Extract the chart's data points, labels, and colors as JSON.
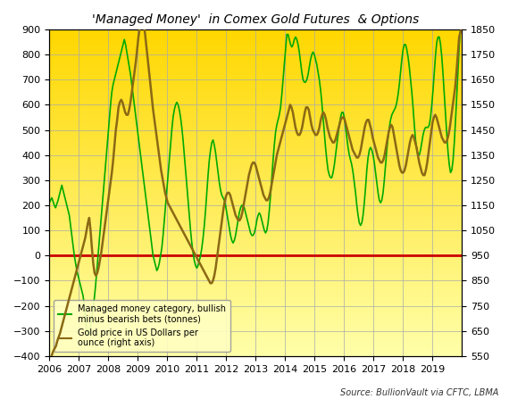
{
  "title": "'Managed Money'  in Comex Gold Futures  & Options",
  "source_text": "Source: BullionVault via CFTC, LBMA",
  "left_ylim": [
    -400,
    900
  ],
  "right_ylim": [
    550,
    1850
  ],
  "left_yticks": [
    -400,
    -300,
    -200,
    -100,
    0,
    100,
    200,
    300,
    400,
    500,
    600,
    700,
    800,
    900
  ],
  "right_yticks": [
    550,
    650,
    750,
    850,
    950,
    1050,
    1150,
    1250,
    1350,
    1450,
    1550,
    1650,
    1750,
    1850
  ],
  "xtick_labels": [
    "2006",
    "2007",
    "2008",
    "2009",
    "2010",
    "2011",
    "2012",
    "2013",
    "2014",
    "2015",
    "2016",
    "2017",
    "2018",
    "2019"
  ],
  "background_top_color": "#FFD700",
  "background_bottom_color": "#FFFFAA",
  "zero_line_color": "#CC0000",
  "net_color": "#00AA00",
  "gold_color": "#8B6914",
  "legend_net_label": "Managed money category, bullish\nminus bearish bets (tonnes)",
  "legend_gold_label": "Gold price in US Dollars per\nounce (right axis)",
  "net_data": [
    210,
    220,
    230,
    215,
    200,
    190,
    205,
    220,
    240,
    260,
    280,
    260,
    240,
    220,
    200,
    180,
    160,
    120,
    80,
    40,
    0,
    -30,
    -60,
    -80,
    -100,
    -120,
    -140,
    -160,
    -200,
    -250,
    -300,
    -320,
    -310,
    -280,
    -250,
    -210,
    -170,
    -120,
    -60,
    0,
    60,
    120,
    180,
    240,
    300,
    360,
    420,
    480,
    540,
    600,
    650,
    680,
    700,
    720,
    740,
    760,
    780,
    800,
    820,
    840,
    860,
    840,
    810,
    780,
    750,
    720,
    680,
    640,
    600,
    560,
    520,
    480,
    440,
    400,
    360,
    320,
    280,
    240,
    200,
    160,
    120,
    80,
    40,
    0,
    -20,
    -40,
    -60,
    -50,
    -30,
    0,
    30,
    80,
    140,
    200,
    260,
    320,
    380,
    440,
    500,
    550,
    580,
    600,
    610,
    600,
    580,
    550,
    510,
    460,
    400,
    340,
    280,
    220,
    160,
    100,
    50,
    10,
    -20,
    -40,
    -50,
    -40,
    -20,
    0,
    30,
    70,
    120,
    180,
    250,
    320,
    380,
    420,
    450,
    460,
    440,
    410,
    370,
    330,
    290,
    260,
    240,
    230,
    220,
    200,
    170,
    140,
    110,
    80,
    60,
    50,
    60,
    80,
    110,
    140,
    170,
    190,
    200,
    200,
    190,
    170,
    150,
    130,
    110,
    90,
    80,
    80,
    90,
    110,
    140,
    160,
    170,
    160,
    140,
    120,
    100,
    90,
    100,
    130,
    180,
    240,
    310,
    380,
    440,
    490,
    520,
    540,
    560,
    590,
    640,
    700,
    760,
    820,
    880,
    880,
    860,
    840,
    830,
    840,
    860,
    870,
    860,
    840,
    810,
    770,
    730,
    700,
    690,
    690,
    700,
    720,
    750,
    780,
    800,
    810,
    800,
    780,
    760,
    730,
    700,
    660,
    610,
    550,
    490,
    430,
    380,
    340,
    320,
    310,
    310,
    330,
    360,
    400,
    440,
    480,
    520,
    550,
    570,
    570,
    550,
    510,
    470,
    430,
    400,
    380,
    360,
    330,
    290,
    250,
    200,
    160,
    130,
    120,
    130,
    160,
    210,
    270,
    340,
    390,
    420,
    430,
    420,
    400,
    370,
    330,
    290,
    250,
    220,
    210,
    220,
    250,
    300,
    360,
    420,
    470,
    510,
    540,
    560,
    570,
    580,
    590,
    610,
    640,
    680,
    730,
    780,
    820,
    840,
    840,
    820,
    790,
    750,
    700,
    650,
    590,
    520,
    460,
    420,
    400,
    400,
    420,
    450,
    480,
    500,
    510,
    510,
    510,
    520,
    550,
    600,
    660,
    730,
    800,
    850,
    870,
    870,
    840,
    790,
    720,
    640,
    560,
    480,
    410,
    360,
    330,
    340,
    380,
    450,
    540,
    640,
    740,
    840,
    910,
    900
  ],
  "gold_data": [
    520,
    540,
    555,
    570,
    580,
    590,
    610,
    625,
    640,
    660,
    680,
    700,
    720,
    740,
    760,
    780,
    800,
    820,
    840,
    860,
    880,
    900,
    920,
    940,
    960,
    980,
    1000,
    1020,
    1050,
    1080,
    1100,
    1050,
    980,
    920,
    880,
    870,
    880,
    900,
    930,
    960,
    1000,
    1040,
    1080,
    1120,
    1160,
    1200,
    1240,
    1280,
    1330,
    1390,
    1450,
    1490,
    1540,
    1560,
    1570,
    1560,
    1540,
    1520,
    1510,
    1510,
    1530,
    1560,
    1600,
    1640,
    1680,
    1720,
    1770,
    1820,
    1860,
    1880,
    1880,
    1870,
    1830,
    1780,
    1730,
    1680,
    1630,
    1580,
    1530,
    1490,
    1450,
    1410,
    1370,
    1330,
    1290,
    1260,
    1230,
    1200,
    1180,
    1160,
    1150,
    1140,
    1130,
    1120,
    1110,
    1100,
    1090,
    1080,
    1070,
    1060,
    1050,
    1040,
    1030,
    1020,
    1010,
    1000,
    990,
    980,
    970,
    960,
    950,
    940,
    930,
    920,
    910,
    900,
    890,
    880,
    870,
    860,
    850,
    840,
    840,
    850,
    870,
    900,
    940,
    980,
    1020,
    1060,
    1100,
    1140,
    1170,
    1190,
    1200,
    1200,
    1190,
    1170,
    1150,
    1130,
    1110,
    1100,
    1090,
    1090,
    1100,
    1120,
    1150,
    1180,
    1210,
    1240,
    1270,
    1290,
    1310,
    1320,
    1320,
    1310,
    1290,
    1270,
    1250,
    1230,
    1210,
    1190,
    1180,
    1170,
    1170,
    1180,
    1200,
    1230,
    1260,
    1290,
    1320,
    1350,
    1370,
    1390,
    1410,
    1430,
    1450,
    1470,
    1490,
    1510,
    1530,
    1550,
    1540,
    1520,
    1490,
    1460,
    1440,
    1430,
    1430,
    1440,
    1460,
    1490,
    1520,
    1540,
    1540,
    1530,
    1500,
    1470,
    1450,
    1440,
    1430,
    1430,
    1440,
    1460,
    1490,
    1510,
    1520,
    1510,
    1490,
    1460,
    1440,
    1420,
    1410,
    1400,
    1400,
    1410,
    1430,
    1450,
    1470,
    1490,
    1500,
    1500,
    1490,
    1470,
    1450,
    1430,
    1410,
    1390,
    1370,
    1360,
    1350,
    1340,
    1340,
    1350,
    1370,
    1400,
    1430,
    1460,
    1480,
    1490,
    1490,
    1470,
    1450,
    1420,
    1400,
    1380,
    1360,
    1340,
    1330,
    1320,
    1320,
    1330,
    1350,
    1380,
    1410,
    1440,
    1460,
    1470,
    1460,
    1430,
    1400,
    1370,
    1340,
    1310,
    1290,
    1280,
    1280,
    1290,
    1310,
    1340,
    1370,
    1400,
    1420,
    1430,
    1420,
    1400,
    1380,
    1350,
    1320,
    1300,
    1280,
    1270,
    1270,
    1290,
    1320,
    1360,
    1400,
    1440,
    1480,
    1500,
    1510,
    1500,
    1480,
    1460,
    1440,
    1420,
    1410,
    1400,
    1400,
    1410,
    1430,
    1460,
    1500,
    1540,
    1580,
    1620,
    1680,
    1750,
    1820,
    1840,
    1850
  ]
}
